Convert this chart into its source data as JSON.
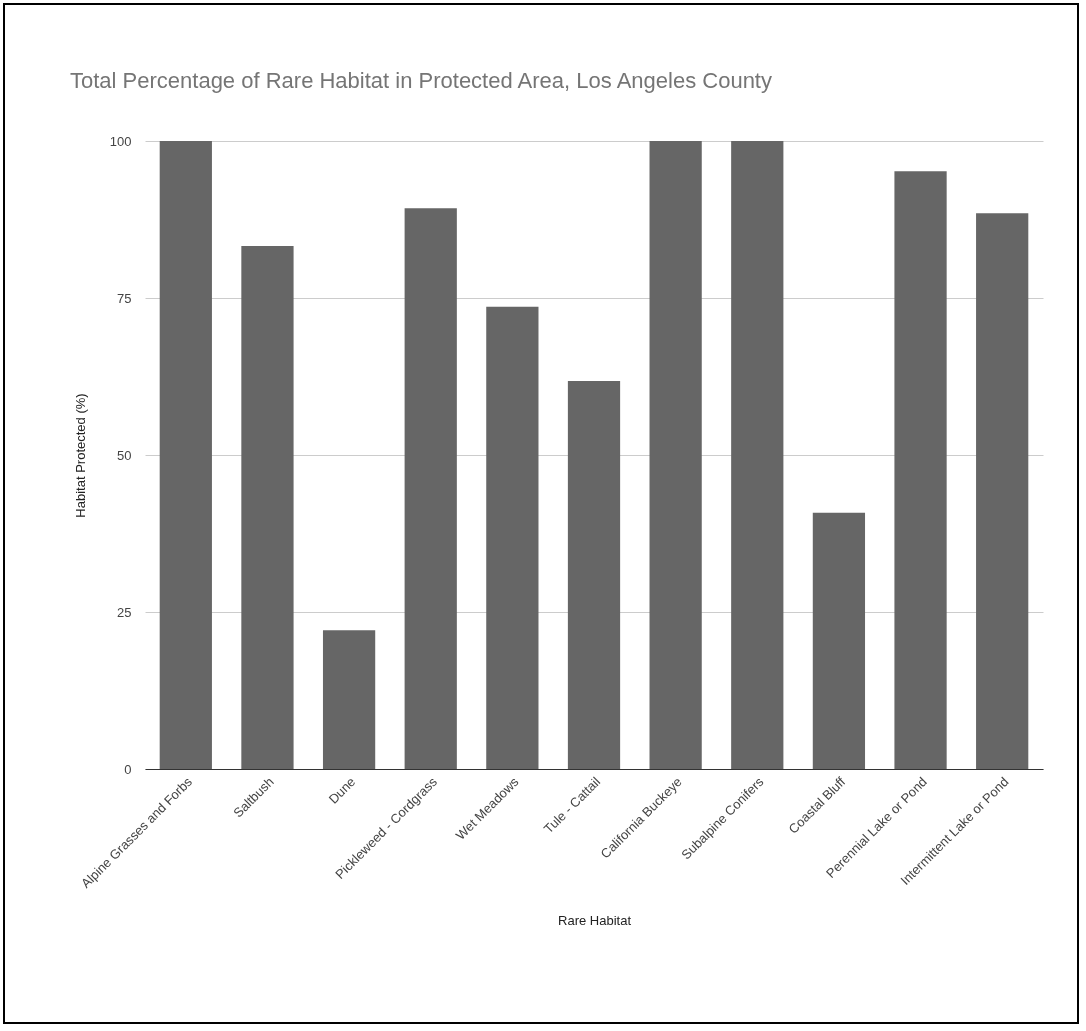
{
  "chart_data": {
    "type": "bar",
    "title": "Total Percentage of Rare Habitat in Protected Area, Los Angeles County",
    "xlabel": "Rare Habitat",
    "ylabel": "Habitat Protected (%)",
    "categories": [
      "Alpine Grasses and Forbs",
      "Saltbush",
      "Dune",
      "Pickleweed - Cordgrass",
      "Wet Meadows",
      "Tule - Cattail",
      "California Buckeye",
      "Subalpine Conifers",
      "Coastal Bluff",
      "Perennial Lake or Pond",
      "Intermittent Lake or Pond"
    ],
    "values": [
      100,
      83.3,
      22.1,
      89.3,
      73.6,
      61.8,
      100,
      100,
      40.8,
      95.2,
      88.5
    ],
    "color": "#666666",
    "ylim": [
      0,
      100
    ],
    "yticks": [
      0,
      25,
      50,
      75,
      100
    ],
    "grid": "y"
  }
}
